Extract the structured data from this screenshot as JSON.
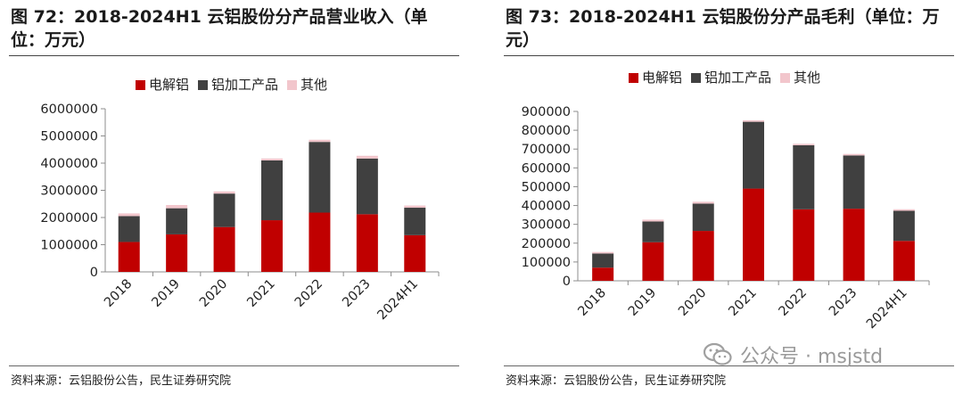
{
  "charts": [
    {
      "title": "图 72：2018-2024H1 云铝股份分产品营业收入（单位：万元）",
      "source": "资料来源：云铝股份公告，民生证券研究院"
    },
    {
      "title": "图 73：2018-2024H1 云铝股份分产品毛利（单位：万元）",
      "source": "资料来源：云铝股份公告，民生证券研究院"
    }
  ],
  "watermark": {
    "text": "公众号 · msjstd",
    "icon": "wechat-icon"
  },
  "colors": {
    "electrolytic": "#c00000",
    "processed": "#404040",
    "other": "#f2c6cc",
    "axis": "#8c8c8c"
  },
  "chart_data": [
    {
      "type": "bar",
      "stacked": true,
      "title": "2018-2024H1 云铝股份分产品营业收入（单位：万元）",
      "categories": [
        "2018",
        "2019",
        "2020",
        "2021",
        "2022",
        "2023",
        "2024H1"
      ],
      "series": [
        {
          "name": "电解铝",
          "values": [
            1100000,
            1380000,
            1650000,
            1900000,
            2180000,
            2120000,
            1350000
          ]
        },
        {
          "name": "铝加工产品",
          "values": [
            950000,
            960000,
            1230000,
            2200000,
            2600000,
            2050000,
            1010000
          ]
        },
        {
          "name": "其他",
          "values": [
            100000,
            120000,
            80000,
            70000,
            80000,
            100000,
            80000
          ]
        }
      ],
      "yticks": [
        "0",
        "1000000",
        "2000000",
        "3000000",
        "4000000",
        "5000000",
        "6000000"
      ],
      "ylim": [
        0,
        6000000
      ],
      "legend": "top",
      "xlabel": "",
      "ylabel": ""
    },
    {
      "type": "bar",
      "stacked": true,
      "title": "2018-2024H1 云铝股份分产品毛利（单位：万元）",
      "categories": [
        "2018",
        "2019",
        "2020",
        "2021",
        "2022",
        "2023",
        "2024H1"
      ],
      "series": [
        {
          "name": "电解铝",
          "values": [
            70000,
            205000,
            265000,
            490000,
            380000,
            383000,
            212000
          ]
        },
        {
          "name": "铝加工产品",
          "values": [
            75000,
            110000,
            145000,
            355000,
            340000,
            283000,
            160000
          ]
        },
        {
          "name": "其他",
          "values": [
            8000,
            10000,
            10000,
            8000,
            8000,
            8000,
            8000
          ]
        }
      ],
      "yticks": [
        "0",
        "100000",
        "200000",
        "300000",
        "400000",
        "500000",
        "600000",
        "700000",
        "800000",
        "900000"
      ],
      "ylim": [
        0,
        900000
      ],
      "legend": "top",
      "xlabel": "",
      "ylabel": ""
    }
  ]
}
